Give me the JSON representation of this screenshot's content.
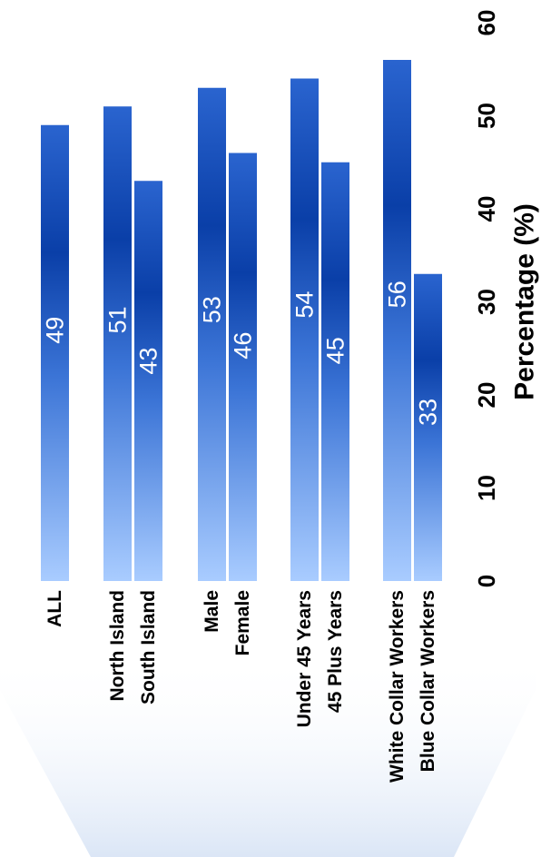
{
  "chart_data": {
    "type": "bar",
    "orientation": "horizontal-rotated",
    "categories": [
      "ALL",
      "North Island",
      "South Island",
      "Male",
      "Female",
      "Under 45 Years",
      "45 Plus Years",
      "White Collar Workers",
      "Blue Collar Workers"
    ],
    "values": [
      49,
      51,
      43,
      53,
      46,
      54,
      45,
      56,
      33
    ],
    "value_labels": [
      "49",
      "51",
      "43",
      "53",
      "46",
      "54",
      "45",
      "56",
      "33"
    ],
    "xlabel": "Percentage (%)",
    "ylabel": "",
    "xlim": [
      0,
      60
    ],
    "ticks": [
      0,
      10,
      20,
      30,
      40,
      50,
      60
    ],
    "tick_labels": [
      "0",
      "10",
      "20",
      "30",
      "40",
      "50",
      "60"
    ],
    "grid": false,
    "legend": "none",
    "colors": {
      "bar_light": "#a9ccff",
      "bar_mid": "#3b74d6",
      "bar_dark": "#0a3fa8",
      "bar_top": "#2a64cf",
      "value_text": "#ffffff",
      "backdrop": "#dbe6f6"
    }
  }
}
